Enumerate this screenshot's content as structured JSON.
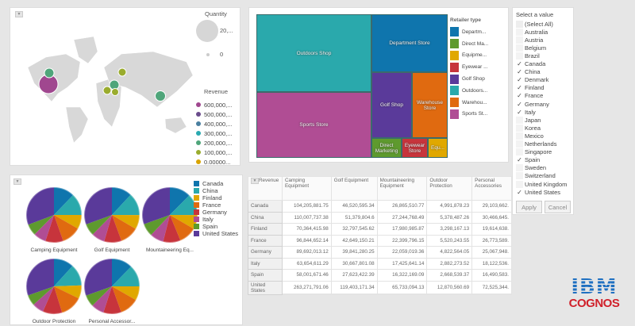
{
  "map": {
    "quantity_title": "Quantity",
    "quantity_max": "20,...",
    "quantity_min": "0",
    "revenue_title": "Revenue",
    "revenue_legend": [
      {
        "label": "600,000,...",
        "color": "#a0478f"
      },
      {
        "label": "500,000,...",
        "color": "#6a4c8c"
      },
      {
        "label": "400,000,...",
        "color": "#4a7fa0"
      },
      {
        "label": "300,000,...",
        "color": "#2aa9b0"
      },
      {
        "label": "200,000,...",
        "color": "#4fa57a"
      },
      {
        "label": "100,000,...",
        "color": "#9aac2e"
      },
      {
        "label": "0.00000...",
        "color": "#d9a400"
      }
    ]
  },
  "treemap": {
    "legend_title": "Retailer type",
    "legend": [
      {
        "label": "Departm...",
        "color": "#0f75ad"
      },
      {
        "label": "Direct Ma...",
        "color": "#5e9a2e"
      },
      {
        "label": "Equipme...",
        "color": "#e0a800"
      },
      {
        "label": "Eyewear ...",
        "color": "#c7343c"
      },
      {
        "label": "Golf Shop",
        "color": "#5a3a9a"
      },
      {
        "label": "Outdoors...",
        "color": "#2aa9ac"
      },
      {
        "label": "Warehou...",
        "color": "#e06a10"
      },
      {
        "label": "Sports St...",
        "color": "#b04d94"
      }
    ],
    "tiles": [
      "Outdoors Shop",
      "Sports Store",
      "Department Store",
      "Golf Shop",
      "Warehouse Store",
      "Direct Marketing",
      "Eyewear Store",
      "Equ..."
    ]
  },
  "filter": {
    "title": "Select a value",
    "select_all": "(Select All)",
    "items": [
      {
        "label": "Australia",
        "checked": false
      },
      {
        "label": "Austria",
        "checked": false
      },
      {
        "label": "Belgium",
        "checked": false
      },
      {
        "label": "Brazil",
        "checked": false
      },
      {
        "label": "Canada",
        "checked": true
      },
      {
        "label": "China",
        "checked": true
      },
      {
        "label": "Denmark",
        "checked": true
      },
      {
        "label": "Finland",
        "checked": true
      },
      {
        "label": "France",
        "checked": true
      },
      {
        "label": "Germany",
        "checked": true
      },
      {
        "label": "Italy",
        "checked": true
      },
      {
        "label": "Japan",
        "checked": false
      },
      {
        "label": "Korea",
        "checked": false
      },
      {
        "label": "Mexico",
        "checked": false
      },
      {
        "label": "Netherlands",
        "checked": false
      },
      {
        "label": "Singapore",
        "checked": false
      },
      {
        "label": "Spain",
        "checked": true
      },
      {
        "label": "Sweden",
        "checked": false
      },
      {
        "label": "Switzerland",
        "checked": false
      },
      {
        "label": "United Kingdom",
        "checked": false
      },
      {
        "label": "United States",
        "checked": true
      }
    ],
    "apply": "Apply",
    "cancel": "Cancel"
  },
  "pies": {
    "legend": [
      {
        "label": "Canada",
        "color": "#0f75ad"
      },
      {
        "label": "China",
        "color": "#2aa9ac"
      },
      {
        "label": "Finland",
        "color": "#e0a800"
      },
      {
        "label": "France",
        "color": "#e06a10"
      },
      {
        "label": "Germany",
        "color": "#c7343c"
      },
      {
        "label": "Italy",
        "color": "#b04d94"
      },
      {
        "label": "Spain",
        "color": "#5e9a2e"
      },
      {
        "label": "United States",
        "color": "#5a3a9a"
      }
    ],
    "titles": [
      "Camping Equipment",
      "Golf Equipment",
      "Mountaineering Eq...",
      "Outdoor Protection",
      "Personal Accessor..."
    ]
  },
  "crosstab": {
    "corner": "Revenue",
    "columns": [
      "Camping Equipment",
      "Golf Equipment",
      "Mountaineering Equipment",
      "Outdoor Protection",
      "Personal Accessories"
    ],
    "rows": [
      {
        "label": "Canada",
        "values": [
          "104,205,881.75",
          "46,520,595.34",
          "26,865,510.77",
          "4,991,878.23",
          "29,103,662."
        ]
      },
      {
        "label": "China",
        "values": [
          "110,007,737.38",
          "51,379,804.6",
          "27,244,768.49",
          "5,378,487.26",
          "30,466,645."
        ]
      },
      {
        "label": "Finland",
        "values": [
          "70,364,415.98",
          "32,797,545.62",
          "17,980,985.87",
          "3,298,167.13",
          "19,614,638."
        ]
      },
      {
        "label": "France",
        "values": [
          "96,844,652.14",
          "42,649,150.21",
          "22,399,796.15",
          "5,520,243.55",
          "26,773,589."
        ]
      },
      {
        "label": "Germany",
        "values": [
          "89,692,013.12",
          "39,841,280.25",
          "22,059,019.36",
          "4,822,564.05",
          "25,067,948."
        ]
      },
      {
        "label": "Italy",
        "values": [
          "63,654,611.29",
          "30,667,801.08",
          "17,425,641.14",
          "2,882,273.52",
          "18,122,536."
        ]
      },
      {
        "label": "Spain",
        "values": [
          "58,001,671.46",
          "27,623,422.39",
          "16,322,169.09",
          "2,668,539.37",
          "16,490,583."
        ]
      },
      {
        "label": "United States",
        "values": [
          "263,271,791.06",
          "119,403,171.34",
          "65,733,094.13",
          "12,870,560.69",
          "72,525,344."
        ]
      }
    ]
  },
  "logo": {
    "line1": "IBM",
    "line2": "COGNOS"
  }
}
